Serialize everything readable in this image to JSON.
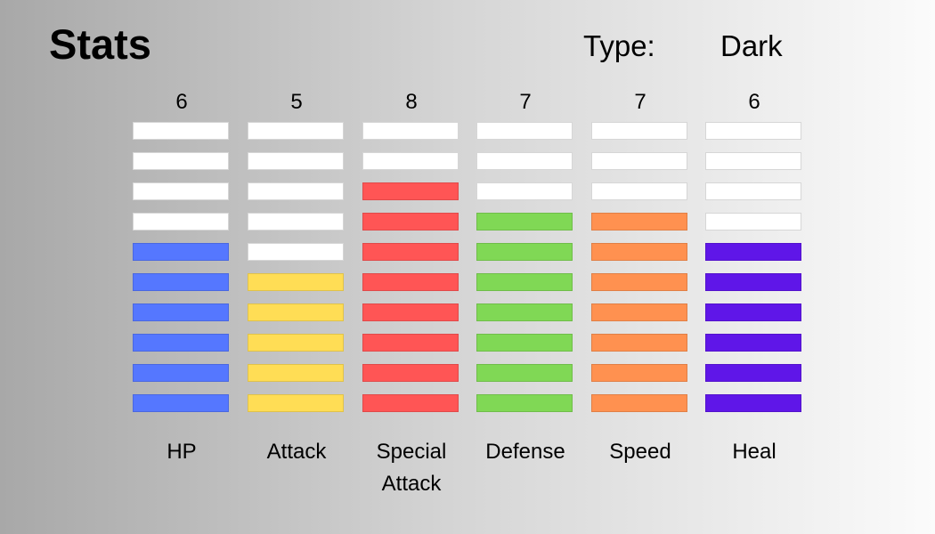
{
  "header": {
    "title": "Stats",
    "type_label": "Type:",
    "type_value": "Dark"
  },
  "chart_data": {
    "type": "bar",
    "title": "Stats",
    "max_segments": 10,
    "categories": [
      "HP",
      "Attack",
      "Special Attack",
      "Defense",
      "Speed",
      "Heal"
    ],
    "values": [
      6,
      5,
      8,
      7,
      7,
      6
    ],
    "colors": [
      "#5577ff",
      "#ffdd55",
      "#ff5555",
      "#80d855",
      "#ff9150",
      "#5f16e8"
    ],
    "empty_color": "#ffffff",
    "grid": false
  }
}
